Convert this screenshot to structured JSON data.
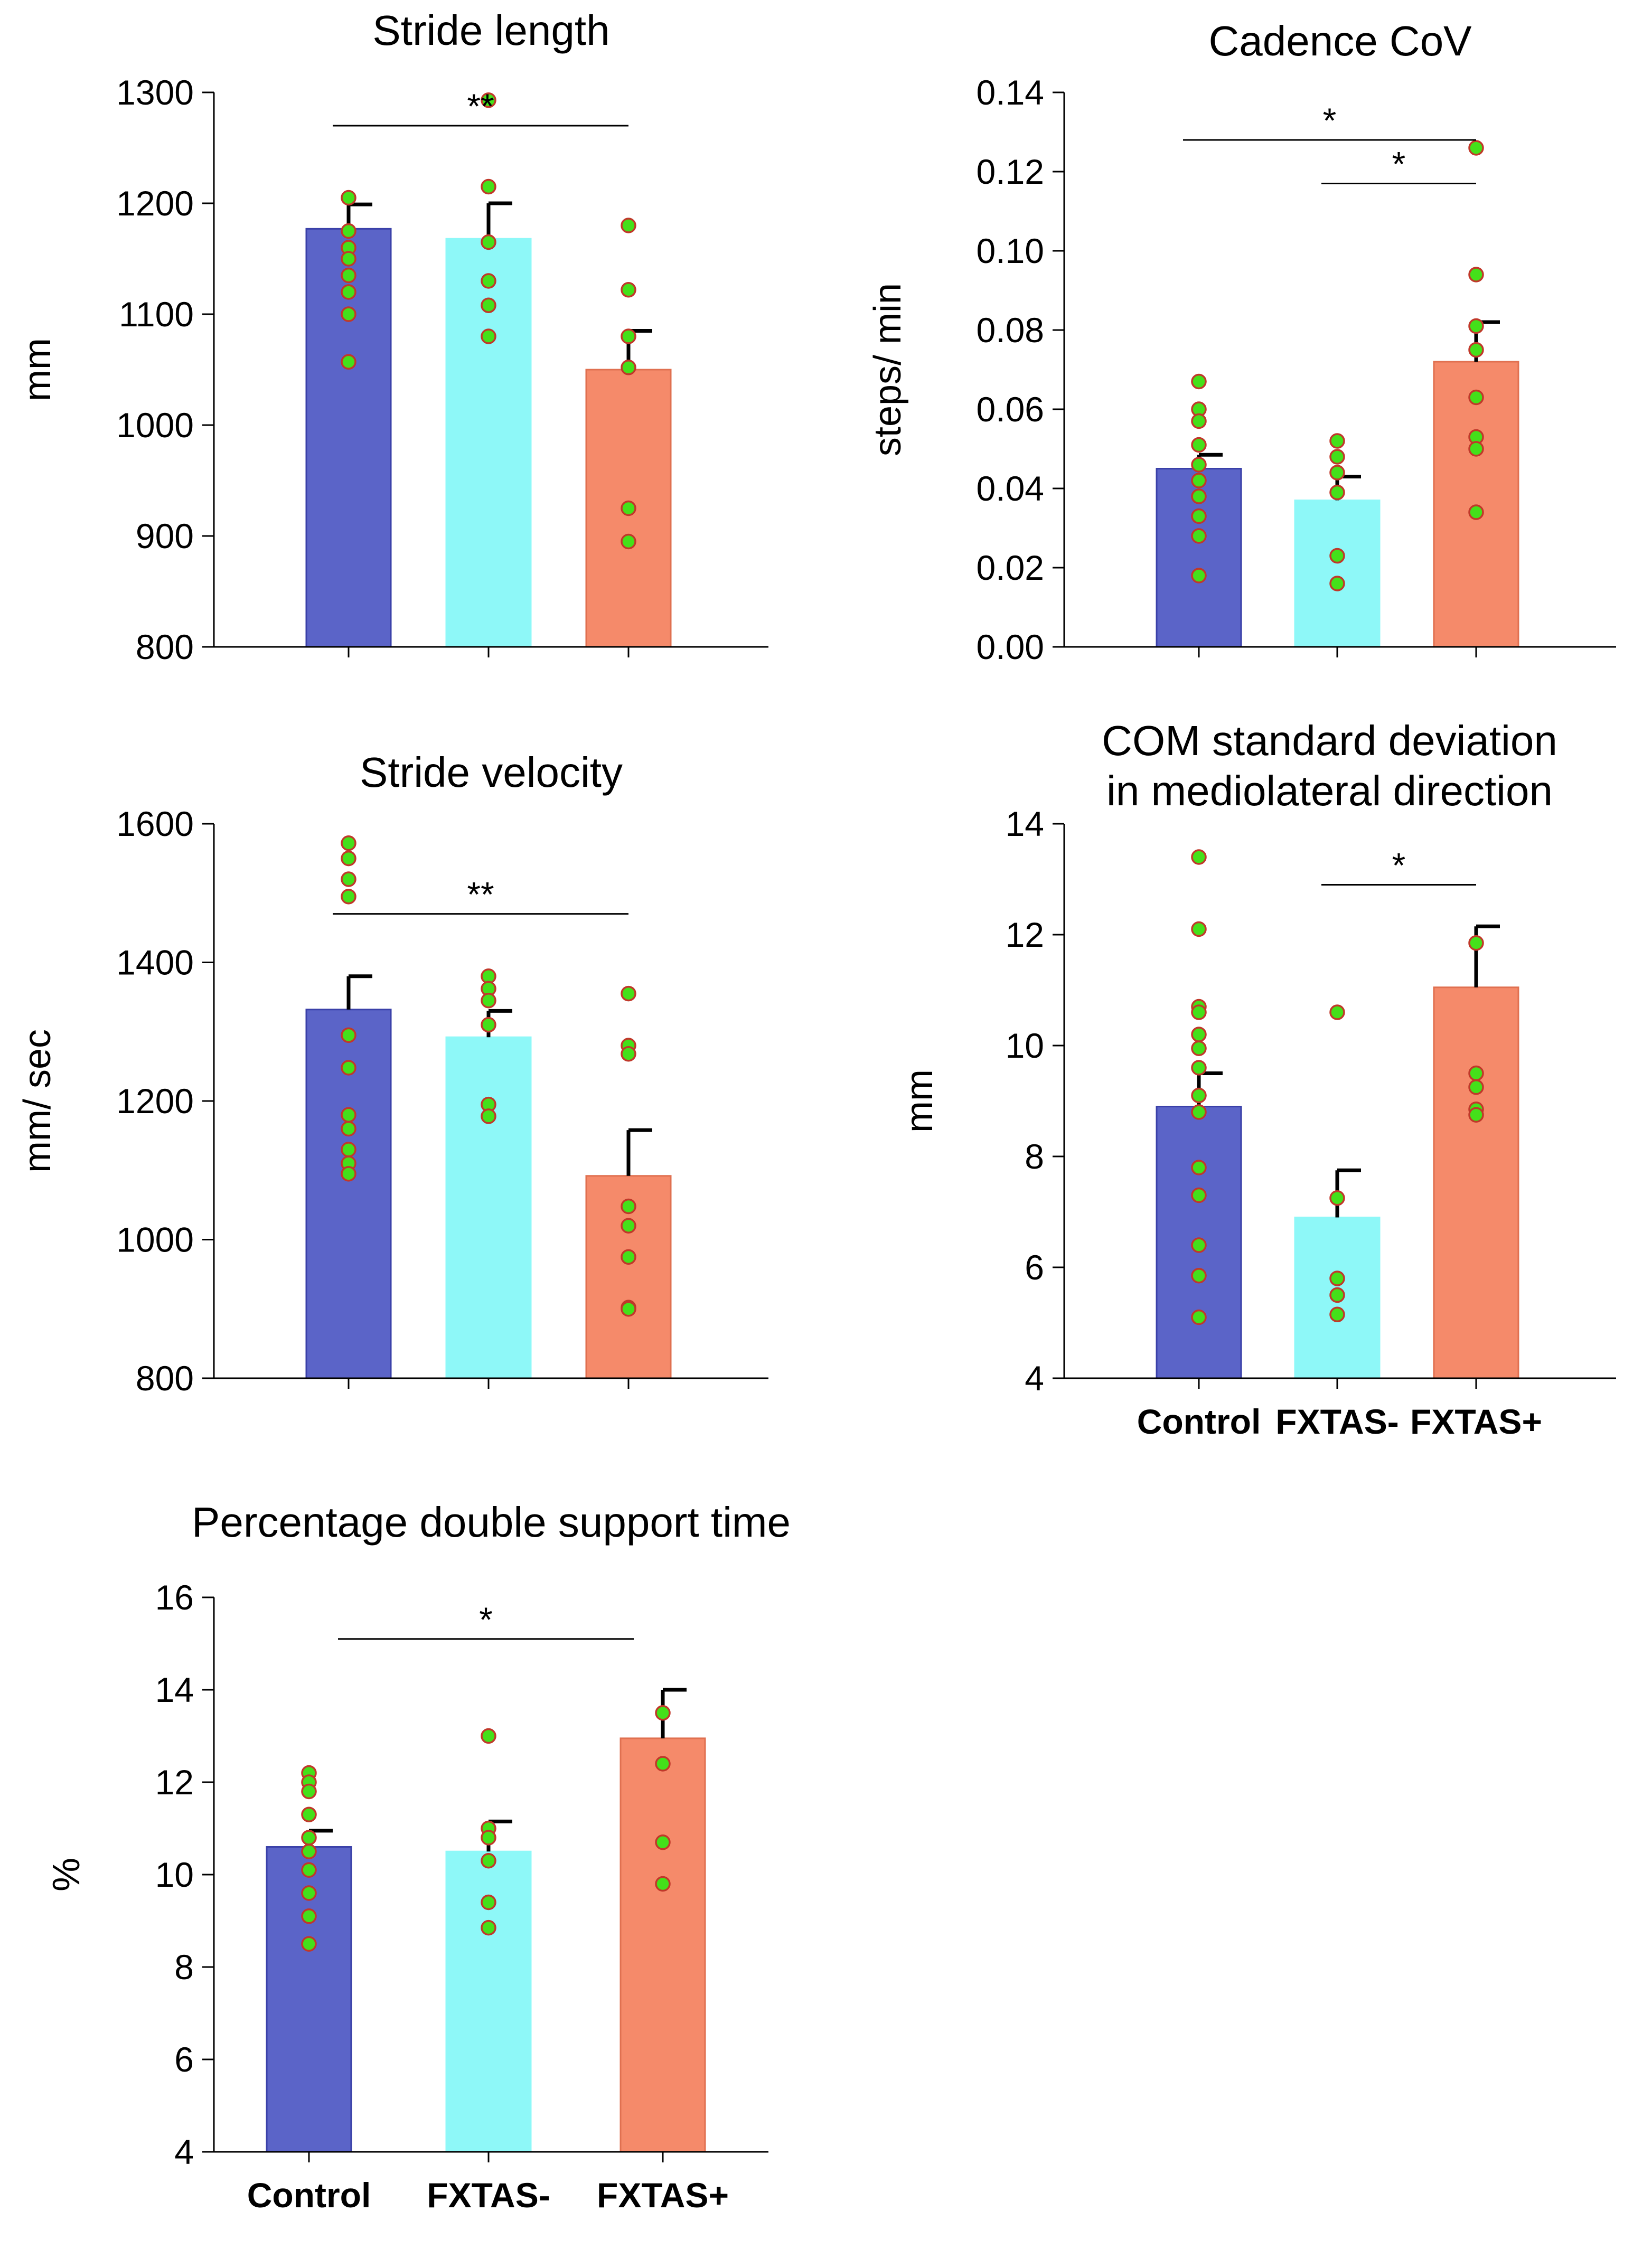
{
  "colors": {
    "control": "#5b64c8",
    "fxtas_minus": "#8ef8f8",
    "fxtas_plus": "#f58a6a",
    "dot_fill": "#44e01a",
    "dot_stroke": "#c0382a"
  },
  "chart_data": [
    {
      "type": "bar",
      "title": [
        "Stride length"
      ],
      "ylabel": "mm",
      "xlabel": "",
      "categories": [
        "Control",
        "FXTAS-",
        "FXTAS+"
      ],
      "show_category_labels": false,
      "ylim": [
        800,
        1300
      ],
      "yticks": [
        "800",
        "900",
        "1000",
        "1100",
        "1200",
        "1300"
      ],
      "means": [
        1177,
        1168,
        1050
      ],
      "errors": [
        22,
        32,
        35
      ],
      "points": [
        [
          1205,
          1175,
          1160,
          1150,
          1135,
          1120,
          1100,
          1057
        ],
        [
          1293,
          1215,
          1165,
          1130,
          1108,
          1080
        ],
        [
          1180,
          1122,
          1080,
          1052,
          925,
          895
        ]
      ],
      "significance": [
        {
          "from": 0,
          "to": 2,
          "label": "**",
          "y": 1270
        }
      ]
    },
    {
      "type": "bar",
      "title": [
        "Cadence CoV"
      ],
      "ylabel": "steps/ min",
      "xlabel": "",
      "categories": [
        "Control",
        "FXTAS-",
        "FXTAS+"
      ],
      "show_category_labels": false,
      "ylim": [
        0,
        0.14
      ],
      "yticks": [
        "0.00",
        "0.02",
        "0.04",
        "0.06",
        "0.08",
        "0.10",
        "0.12",
        "0.14"
      ],
      "means": [
        0.045,
        0.037,
        0.072
      ],
      "errors": [
        0.0035,
        0.006,
        0.01
      ],
      "points": [
        [
          0.067,
          0.06,
          0.057,
          0.051,
          0.046,
          0.042,
          0.038,
          0.033,
          0.028,
          0.018
        ],
        [
          0.052,
          0.048,
          0.044,
          0.039,
          0.023,
          0.016
        ],
        [
          0.126,
          0.094,
          0.081,
          0.075,
          0.063,
          0.053,
          0.05,
          0.034
        ]
      ],
      "significance": [
        {
          "from": 0,
          "to": 2,
          "label": "*",
          "y": 0.128
        },
        {
          "from": 1,
          "to": 2,
          "label": "*",
          "y": 0.117
        }
      ]
    },
    {
      "type": "bar",
      "title": [
        "Stride velocity"
      ],
      "ylabel": "mm/ sec",
      "xlabel": "",
      "categories": [
        "Control",
        "FXTAS-",
        "FXTAS+"
      ],
      "show_category_labels": false,
      "ylim": [
        800,
        1600
      ],
      "yticks": [
        "800",
        "1000",
        "1200",
        "1400",
        "1600"
      ],
      "means": [
        1332,
        1292,
        1092
      ],
      "errors": [
        48,
        38,
        66
      ],
      "points": [
        [
          1572,
          1550,
          1520,
          1495,
          1295,
          1248,
          1180,
          1160,
          1130,
          1110,
          1095
        ],
        [
          1380,
          1362,
          1345,
          1310,
          1195,
          1178
        ],
        [
          1355,
          1280,
          1268,
          1048,
          1020,
          975,
          902,
          900
        ]
      ],
      "significance": [
        {
          "from": 0,
          "to": 2,
          "label": "**",
          "y": 1470
        }
      ]
    },
    {
      "type": "bar",
      "title": [
        "COM standard deviation",
        "in mediolateral direction"
      ],
      "ylabel": "mm",
      "xlabel": "",
      "categories": [
        "Control",
        "FXTAS-",
        "FXTAS+"
      ],
      "show_category_labels": true,
      "ylim": [
        4,
        14
      ],
      "yticks": [
        "4",
        "6",
        "8",
        "10",
        "12",
        "14"
      ],
      "means": [
        8.9,
        6.9,
        11.05
      ],
      "errors": [
        0.6,
        0.85,
        1.1
      ],
      "points": [
        [
          13.4,
          12.1,
          10.7,
          10.6,
          10.2,
          9.95,
          9.6,
          9.1,
          8.8,
          7.8,
          7.3,
          6.4,
          5.85,
          5.1
        ],
        [
          10.6,
          7.25,
          5.8,
          5.5,
          5.15
        ],
        [
          11.85,
          9.5,
          9.25,
          8.85,
          8.75
        ]
      ],
      "significance": [
        {
          "from": 1,
          "to": 2,
          "label": "*",
          "y": 12.9
        }
      ]
    },
    {
      "type": "bar",
      "title": [
        "Percentage double support time"
      ],
      "ylabel": "%",
      "xlabel": "",
      "categories": [
        "Control",
        "FXTAS-",
        "FXTAS+"
      ],
      "show_category_labels": true,
      "ylim": [
        4,
        16
      ],
      "yticks": [
        "4",
        "6",
        "8",
        "10",
        "12",
        "14",
        "16"
      ],
      "means": [
        10.6,
        10.5,
        12.95
      ],
      "errors": [
        0.35,
        0.65,
        1.05
      ],
      "points": [
        [
          12.2,
          12.0,
          11.8,
          11.3,
          10.8,
          10.5,
          10.1,
          9.6,
          9.1,
          8.5
        ],
        [
          13.0,
          11.0,
          10.8,
          10.3,
          9.4,
          8.85
        ],
        [
          13.5,
          12.4,
          10.7,
          9.8
        ]
      ],
      "significance": [
        {
          "from": 0,
          "to": 2,
          "label": "*",
          "y": 15.1
        }
      ]
    }
  ]
}
